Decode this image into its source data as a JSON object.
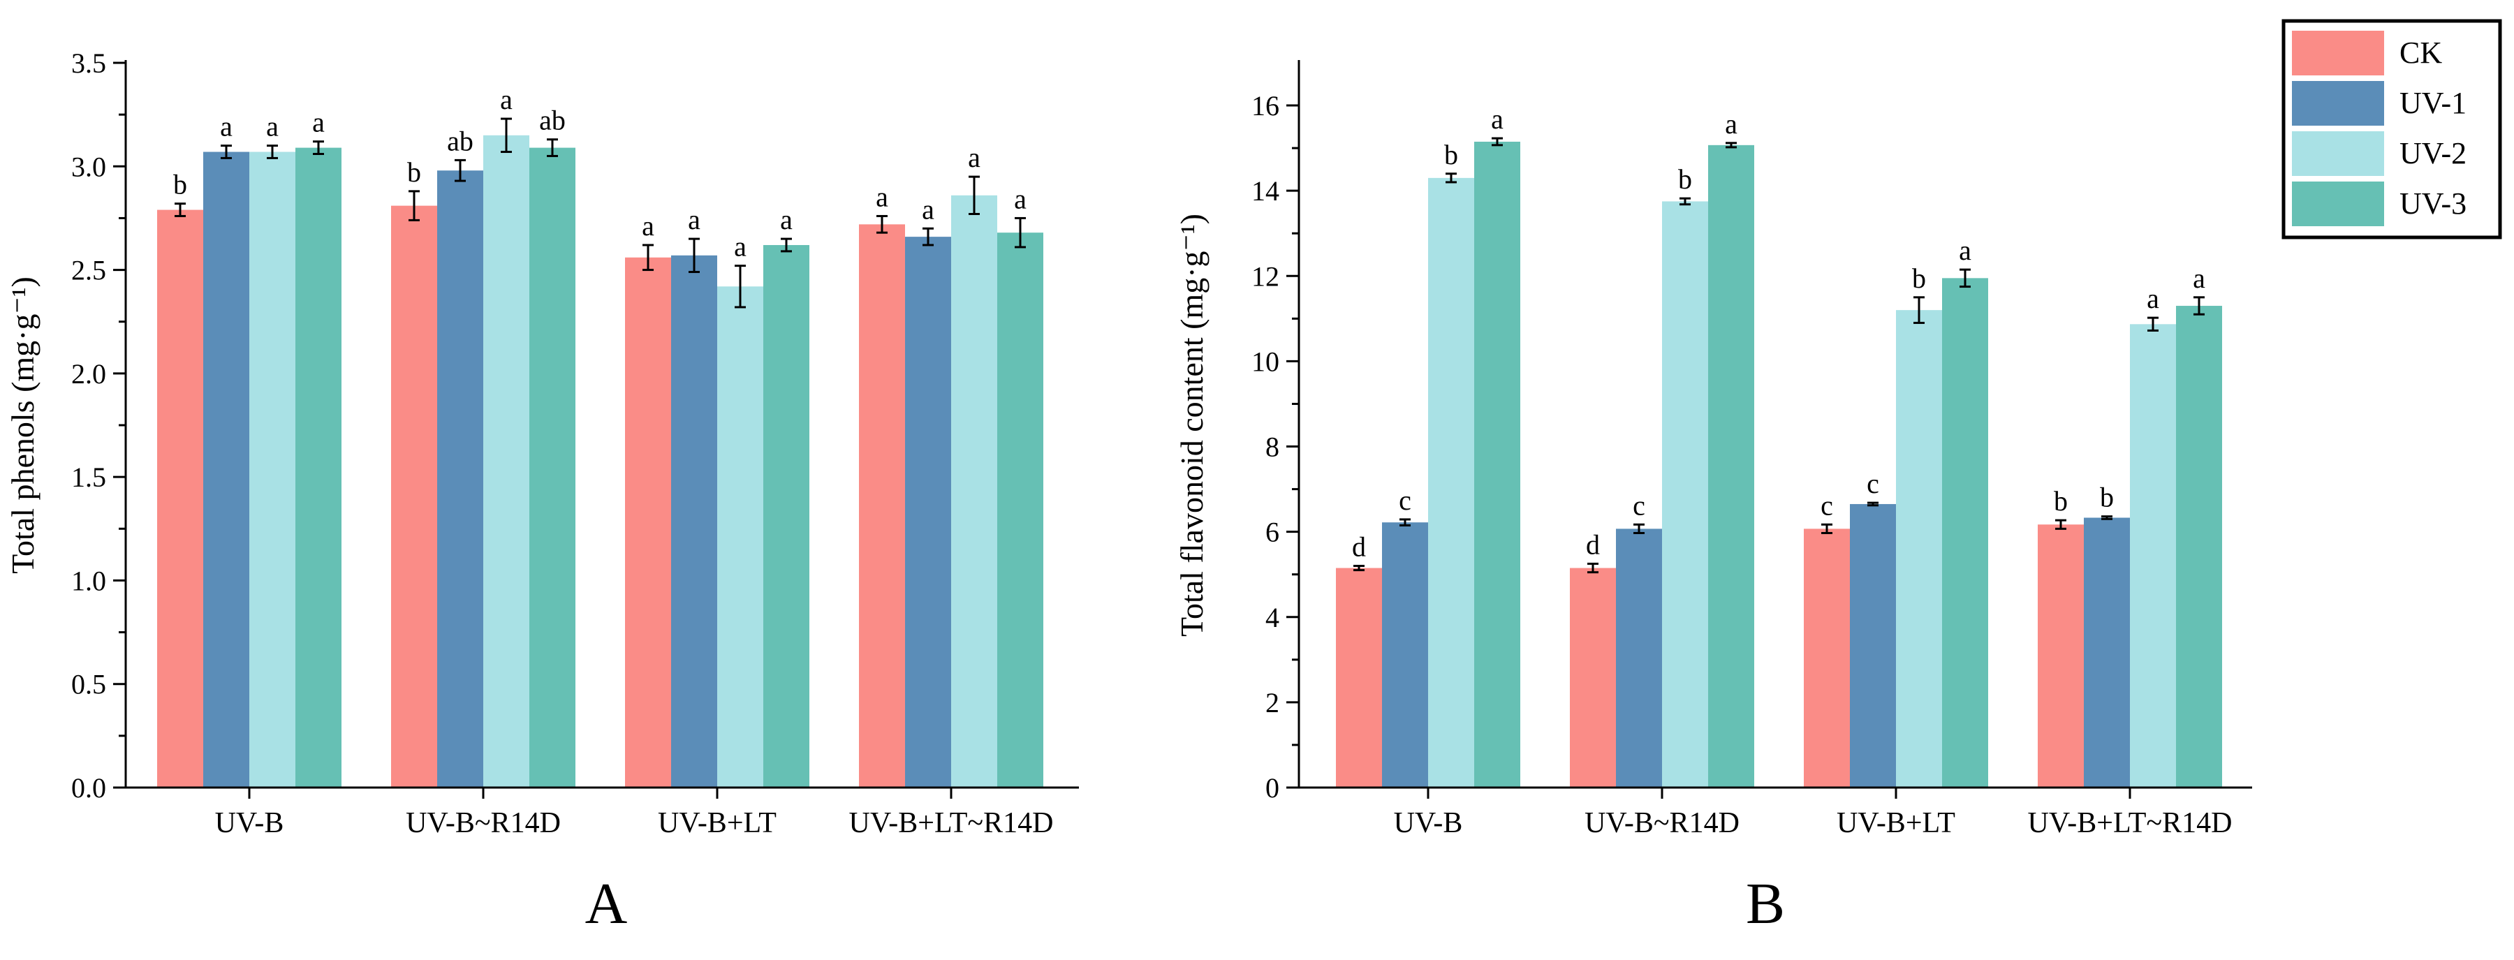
{
  "figure": {
    "panel_labels": [
      "A",
      "B"
    ]
  },
  "legend": {
    "entries": [
      {
        "name": "CK",
        "color": "#fa8c87"
      },
      {
        "name": "UV-1",
        "color": "#5b8db8"
      },
      {
        "name": "UV-2",
        "color": "#a9e1e5"
      },
      {
        "name": "UV-3",
        "color": "#66c0b4"
      }
    ]
  },
  "chart_data": [
    {
      "type": "bar",
      "panel": "A",
      "title": "",
      "xlabel": "",
      "ylabel": "Total phenols (mg·g⁻¹)",
      "ylim": [
        0,
        3.5
      ],
      "yticks": [
        0.0,
        0.5,
        1.0,
        1.5,
        2.0,
        2.5,
        3.0,
        3.5
      ],
      "ytick_labels": [
        "0.0",
        "0.5",
        "1.0",
        "1.5",
        "2.0",
        "2.5",
        "3.0",
        "3.5"
      ],
      "categories": [
        "UV-B",
        "UV-B~R14D",
        "UV-B+LT",
        "UV-B+LT~R14D"
      ],
      "series": [
        {
          "name": "CK",
          "values": [
            2.79,
            2.81,
            2.56,
            2.72
          ],
          "errors": [
            0.03,
            0.07,
            0.06,
            0.04
          ],
          "letters": [
            "b",
            "b",
            "a",
            "a"
          ]
        },
        {
          "name": "UV-1",
          "values": [
            3.07,
            2.98,
            2.57,
            2.66
          ],
          "errors": [
            0.03,
            0.05,
            0.08,
            0.04
          ],
          "letters": [
            "a",
            "ab",
            "a",
            "a"
          ]
        },
        {
          "name": "UV-2",
          "values": [
            3.07,
            3.15,
            2.42,
            2.86
          ],
          "errors": [
            0.03,
            0.08,
            0.1,
            0.09
          ],
          "letters": [
            "a",
            "a",
            "a",
            "a"
          ]
        },
        {
          "name": "UV-3",
          "values": [
            3.09,
            3.09,
            2.62,
            2.68
          ],
          "errors": [
            0.03,
            0.04,
            0.03,
            0.07
          ],
          "letters": [
            "a",
            "ab",
            "a",
            "a"
          ]
        }
      ]
    },
    {
      "type": "bar",
      "panel": "B",
      "title": "",
      "xlabel": "",
      "ylabel": "Total flavonoid content (mg·g⁻¹)",
      "ylim": [
        0,
        17
      ],
      "yticks": [
        0,
        2,
        4,
        6,
        8,
        10,
        12,
        14,
        16
      ],
      "ytick_labels": [
        "0",
        "2",
        "4",
        "6",
        "8",
        "10",
        "12",
        "14",
        "16"
      ],
      "categories": [
        "UV-B",
        "UV-B~R14D",
        "UV-B+LT",
        "UV-B+LT~R14D"
      ],
      "series": [
        {
          "name": "CK",
          "values": [
            5.15,
            5.15,
            6.07,
            6.17
          ],
          "errors": [
            0.05,
            0.1,
            0.1,
            0.1
          ],
          "letters": [
            "d",
            "d",
            "c",
            "b"
          ]
        },
        {
          "name": "UV-1",
          "values": [
            6.22,
            6.07,
            6.65,
            6.33
          ],
          "errors": [
            0.07,
            0.1,
            0.03,
            0.03
          ],
          "letters": [
            "c",
            "c",
            "c",
            "b"
          ]
        },
        {
          "name": "UV-2",
          "values": [
            14.3,
            13.75,
            11.2,
            10.87
          ],
          "errors": [
            0.1,
            0.07,
            0.3,
            0.15
          ],
          "letters": [
            "b",
            "b",
            "b",
            "a"
          ]
        },
        {
          "name": "UV-3",
          "values": [
            15.15,
            15.07,
            11.95,
            11.3
          ],
          "errors": [
            0.08,
            0.05,
            0.2,
            0.2
          ],
          "letters": [
            "a",
            "a",
            "a",
            "a"
          ]
        }
      ]
    }
  ]
}
